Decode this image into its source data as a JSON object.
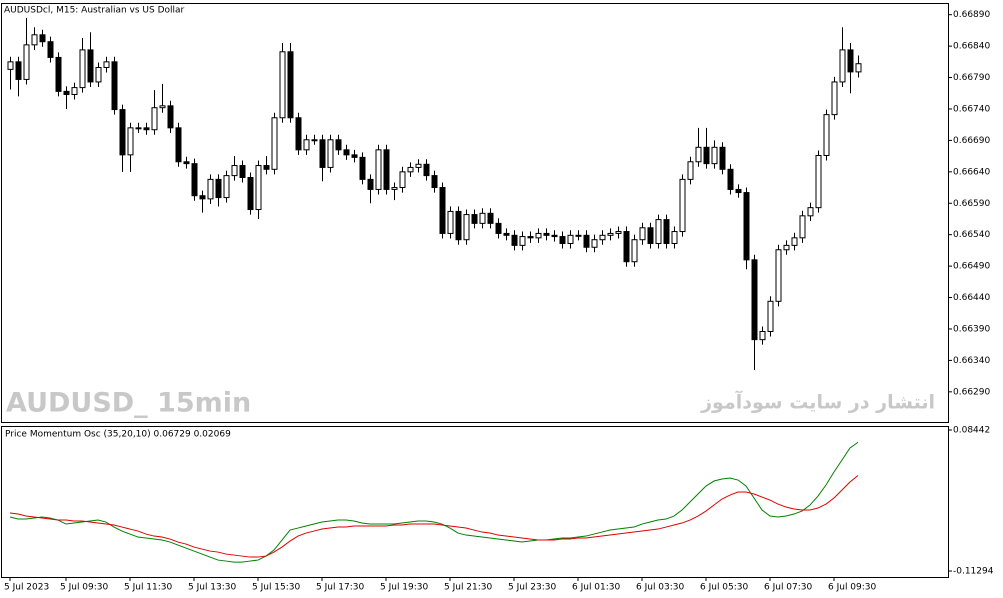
{
  "chart_data": [
    {
      "type": "candlestick",
      "title": "AUDUSDcl, M15:  Australian vs US Dollar",
      "watermark": "AUDUSD_ 15min",
      "annotation": "انتشار در سایت سودآموز",
      "categories": [
        "5 Jul 2023",
        null,
        null,
        null,
        null,
        null,
        null,
        "5 Jul 09:30",
        null,
        null,
        null,
        null,
        null,
        null,
        null,
        "5 Jul 11:30",
        null,
        null,
        null,
        null,
        null,
        null,
        null,
        "5 Jul 13:30",
        null,
        null,
        null,
        null,
        null,
        null,
        null,
        "5 Jul 15:30",
        null,
        null,
        null,
        null,
        null,
        null,
        null,
        "5 Jul 17:30",
        null,
        null,
        null,
        null,
        null,
        null,
        null,
        "5 Jul 19:30",
        null,
        null,
        null,
        null,
        null,
        null,
        null,
        "5 Jul 21:30",
        null,
        null,
        null,
        null,
        null,
        null,
        null,
        "5 Jul 23:30",
        null,
        null,
        null,
        null,
        null,
        null,
        null,
        "6 Jul 01:30",
        null,
        null,
        null,
        null,
        null,
        null,
        null,
        "6 Jul 03:30",
        null,
        null,
        null,
        null,
        null,
        null,
        null,
        "6 Jul 05:30",
        null,
        null,
        null,
        null,
        null,
        null,
        null,
        "6 Jul 07:30",
        null,
        null,
        null,
        null,
        null,
        null,
        null,
        "6 Jul 09:30",
        null,
        null,
        null
      ],
      "open": [
        0.66803,
        0.66815,
        0.66787,
        0.66842,
        0.66858,
        0.66847,
        0.66822,
        0.66768,
        0.66763,
        0.66774,
        0.66834,
        0.66783,
        0.66806,
        0.66815,
        0.66739,
        0.66667,
        0.6671,
        0.6671,
        0.66707,
        0.66742,
        0.66745,
        0.6671,
        0.66656,
        0.66653,
        0.66602,
        0.66597,
        0.66628,
        0.66599,
        0.66634,
        0.6665,
        0.66631,
        0.6658,
        0.6665,
        0.66644,
        0.66726,
        0.66831,
        0.66726,
        0.66675,
        0.66691,
        0.66691,
        0.66647,
        0.66691,
        0.66675,
        0.66667,
        0.66663,
        0.66628,
        0.66612,
        0.66675,
        0.66612,
        0.66615,
        0.6664,
        0.66647,
        0.66652,
        0.66634,
        0.66615,
        0.66542,
        0.66577,
        0.66532,
        0.66572,
        0.66558,
        0.66574,
        0.66558,
        0.66542,
        0.66539,
        0.66523,
        0.66537,
        0.66535,
        0.66542,
        0.66539,
        0.66537,
        0.66526,
        0.66539,
        0.66539,
        0.6652,
        0.66532,
        0.66539,
        0.66542,
        0.66545,
        0.66497,
        0.66532,
        0.66551,
        0.66526,
        0.66564,
        0.66526,
        0.66545,
        0.66628,
        0.66656,
        0.66679,
        0.66653,
        0.66679,
        0.66644,
        0.66612,
        0.66607,
        0.665,
        0.66373,
        0.66386,
        0.66434,
        0.66516,
        0.66523,
        0.66535,
        0.6657,
        0.66583,
        0.66666,
        0.66731,
        0.66783,
        0.66834,
        0.66799
      ],
      "high": [
        0.66823,
        0.66823,
        0.66885,
        0.6687,
        0.66866,
        0.66855,
        0.6683,
        0.66776,
        0.66782,
        0.66853,
        0.66862,
        0.66814,
        0.66823,
        0.66823,
        0.66747,
        0.66718,
        0.66718,
        0.66718,
        0.6677,
        0.6678,
        0.66753,
        0.66718,
        0.66664,
        0.66661,
        0.6661,
        0.66636,
        0.66636,
        0.66642,
        0.66665,
        0.66658,
        0.66639,
        0.66658,
        0.66665,
        0.66734,
        0.66845,
        0.66845,
        0.66734,
        0.66699,
        0.66699,
        0.66699,
        0.66699,
        0.66699,
        0.66683,
        0.66675,
        0.66671,
        0.66636,
        0.66683,
        0.66683,
        0.66623,
        0.66648,
        0.66655,
        0.6666,
        0.6666,
        0.66642,
        0.66623,
        0.66585,
        0.66585,
        0.6658,
        0.6658,
        0.66582,
        0.66582,
        0.66566,
        0.6655,
        0.66547,
        0.66545,
        0.66545,
        0.6655,
        0.6655,
        0.66547,
        0.66545,
        0.66547,
        0.66547,
        0.66547,
        0.6654,
        0.66547,
        0.6655,
        0.66553,
        0.66553,
        0.6654,
        0.66559,
        0.66559,
        0.66572,
        0.66572,
        0.66553,
        0.66636,
        0.66664,
        0.6671,
        0.6671,
        0.6669,
        0.66687,
        0.66652,
        0.6662,
        0.66615,
        0.66508,
        0.66394,
        0.66442,
        0.66524,
        0.66531,
        0.66543,
        0.66578,
        0.66591,
        0.66674,
        0.66739,
        0.66791,
        0.6687,
        0.66845,
        0.66825
      ],
      "low": [
        0.66771,
        0.6676,
        0.66779,
        0.66834,
        0.66839,
        0.66814,
        0.6676,
        0.6674,
        0.66755,
        0.66766,
        0.66775,
        0.66775,
        0.66798,
        0.66731,
        0.6664,
        0.6664,
        0.66702,
        0.66699,
        0.66699,
        0.66734,
        0.66702,
        0.66648,
        0.66645,
        0.66594,
        0.66575,
        0.66589,
        0.66585,
        0.66591,
        0.66626,
        0.66623,
        0.66572,
        0.66565,
        0.66636,
        0.66636,
        0.66718,
        0.66718,
        0.66667,
        0.66667,
        0.66683,
        0.66625,
        0.66639,
        0.66667,
        0.66659,
        0.66655,
        0.6662,
        0.6659,
        0.66604,
        0.66604,
        0.66595,
        0.66607,
        0.66632,
        0.66639,
        0.66626,
        0.66607,
        0.66534,
        0.66534,
        0.66524,
        0.66524,
        0.6655,
        0.6655,
        0.6655,
        0.66534,
        0.66531,
        0.66515,
        0.66515,
        0.66527,
        0.66527,
        0.66531,
        0.66529,
        0.66518,
        0.66518,
        0.66531,
        0.66512,
        0.66512,
        0.66524,
        0.66531,
        0.66534,
        0.66489,
        0.66489,
        0.66524,
        0.66518,
        0.66518,
        0.66518,
        0.66518,
        0.66537,
        0.6662,
        0.66648,
        0.66645,
        0.66645,
        0.66636,
        0.66604,
        0.66599,
        0.66485,
        0.66325,
        0.66365,
        0.66378,
        0.66426,
        0.66508,
        0.66515,
        0.66527,
        0.66562,
        0.66575,
        0.66658,
        0.66723,
        0.66775,
        0.66765,
        0.6679
      ],
      "close": [
        0.66815,
        0.66787,
        0.66842,
        0.66858,
        0.66847,
        0.66822,
        0.66768,
        0.66763,
        0.66774,
        0.66834,
        0.66783,
        0.66806,
        0.66815,
        0.66739,
        0.66667,
        0.6671,
        0.6671,
        0.66707,
        0.66742,
        0.66745,
        0.6671,
        0.66656,
        0.66653,
        0.66602,
        0.66597,
        0.66628,
        0.66599,
        0.66634,
        0.6665,
        0.66631,
        0.6658,
        0.6665,
        0.66644,
        0.66726,
        0.66831,
        0.66726,
        0.66675,
        0.66691,
        0.66691,
        0.66647,
        0.66691,
        0.66675,
        0.66667,
        0.66663,
        0.66628,
        0.66612,
        0.66675,
        0.66612,
        0.66615,
        0.6664,
        0.66647,
        0.66652,
        0.66634,
        0.66615,
        0.66542,
        0.66577,
        0.66532,
        0.66572,
        0.66558,
        0.66574,
        0.66558,
        0.66542,
        0.66539,
        0.66523,
        0.66537,
        0.66535,
        0.66542,
        0.66539,
        0.66537,
        0.66526,
        0.66539,
        0.66539,
        0.6652,
        0.66532,
        0.66539,
        0.66542,
        0.66545,
        0.66497,
        0.66532,
        0.66551,
        0.66526,
        0.66564,
        0.66526,
        0.66545,
        0.66628,
        0.66656,
        0.66679,
        0.66653,
        0.66679,
        0.66644,
        0.66612,
        0.66607,
        0.665,
        0.66373,
        0.66386,
        0.66434,
        0.66516,
        0.66523,
        0.66535,
        0.6657,
        0.66583,
        0.66666,
        0.66731,
        0.66783,
        0.66834,
        0.66799,
        0.66812
      ],
      "up_color": "#ffffff",
      "down_color": "#000000",
      "outline_color": "#000000",
      "ylim": [
        0.66242,
        0.66907
      ],
      "yticks": [
        {
          "value": 0.6689,
          "label": "0.66890"
        },
        {
          "value": 0.6684,
          "label": "0.66840"
        },
        {
          "value": 0.6679,
          "label": "0.66790"
        },
        {
          "value": 0.6674,
          "label": "0.66740"
        },
        {
          "value": 0.6669,
          "label": "0.66690"
        },
        {
          "value": 0.6664,
          "label": "0.66640"
        },
        {
          "value": 0.6659,
          "label": "0.66590"
        },
        {
          "value": 0.6654,
          "label": "0.66540"
        },
        {
          "value": 0.6649,
          "label": "0.66490"
        },
        {
          "value": 0.6644,
          "label": "0.66440"
        },
        {
          "value": 0.6639,
          "label": "0.66390"
        },
        {
          "value": 0.6634,
          "label": "0.66340"
        },
        {
          "value": 0.6629,
          "label": "0.66290"
        }
      ]
    },
    {
      "type": "line",
      "title": "Price Momentum Osc (35,20,10) 0.06729 0.02069",
      "series": [
        {
          "color": "#008000",
          "values": [
            -0.0374,
            -0.0402,
            -0.0402,
            -0.0388,
            -0.0374,
            -0.0388,
            -0.0416,
            -0.0472,
            -0.0458,
            -0.0444,
            -0.043,
            -0.0416,
            -0.0444,
            -0.0514,
            -0.057,
            -0.0612,
            -0.0654,
            -0.0668,
            -0.0682,
            -0.0696,
            -0.0724,
            -0.0766,
            -0.0808,
            -0.085,
            -0.0892,
            -0.0934,
            -0.0976,
            -0.099,
            -0.1004,
            -0.1004,
            -0.099,
            -0.0976,
            -0.092,
            -0.0836,
            -0.0696,
            -0.0556,
            -0.0528,
            -0.05,
            -0.0472,
            -0.0444,
            -0.043,
            -0.0416,
            -0.0416,
            -0.043,
            -0.0458,
            -0.0472,
            -0.0472,
            -0.0472,
            -0.0472,
            -0.0458,
            -0.0444,
            -0.043,
            -0.043,
            -0.0444,
            -0.0472,
            -0.0528,
            -0.0598,
            -0.0626,
            -0.064,
            -0.0654,
            -0.0668,
            -0.0682,
            -0.0696,
            -0.071,
            -0.0724,
            -0.071,
            -0.0696,
            -0.0696,
            -0.0682,
            -0.0668,
            -0.0668,
            -0.0654,
            -0.064,
            -0.0612,
            -0.0584,
            -0.0556,
            -0.0542,
            -0.0528,
            -0.0514,
            -0.0472,
            -0.0444,
            -0.0416,
            -0.0402,
            -0.036,
            -0.0276,
            -0.0164,
            -0.0052,
            0.006,
            0.013,
            0.0158,
            0.0172,
            0.0144,
            0.006,
            -0.0108,
            -0.0276,
            -0.036,
            -0.0374,
            -0.036,
            -0.0332,
            -0.029,
            -0.0206,
            -0.008,
            0.0074,
            0.0256,
            0.0424,
            0.0592,
            0.06729
          ]
        },
        {
          "color": "#e00000",
          "values": [
            -0.0318,
            -0.0332,
            -0.036,
            -0.0374,
            -0.0388,
            -0.0402,
            -0.0416,
            -0.0416,
            -0.043,
            -0.043,
            -0.0444,
            -0.0458,
            -0.0472,
            -0.0486,
            -0.0514,
            -0.0542,
            -0.057,
            -0.0612,
            -0.064,
            -0.0654,
            -0.0682,
            -0.0724,
            -0.0752,
            -0.0794,
            -0.0822,
            -0.085,
            -0.0864,
            -0.0892,
            -0.0906,
            -0.092,
            -0.0934,
            -0.0934,
            -0.092,
            -0.0864,
            -0.0794,
            -0.071,
            -0.064,
            -0.0598,
            -0.057,
            -0.0542,
            -0.0528,
            -0.0514,
            -0.0514,
            -0.05,
            -0.05,
            -0.05,
            -0.05,
            -0.05,
            -0.0486,
            -0.0486,
            -0.0472,
            -0.0472,
            -0.0472,
            -0.0472,
            -0.0486,
            -0.05,
            -0.0514,
            -0.0528,
            -0.0556,
            -0.0584,
            -0.0598,
            -0.0626,
            -0.064,
            -0.0654,
            -0.0668,
            -0.0682,
            -0.0696,
            -0.0696,
            -0.0696,
            -0.0682,
            -0.0682,
            -0.0668,
            -0.0668,
            -0.0654,
            -0.064,
            -0.0626,
            -0.0612,
            -0.0598,
            -0.0584,
            -0.057,
            -0.0556,
            -0.0542,
            -0.0514,
            -0.0486,
            -0.0458,
            -0.0416,
            -0.036,
            -0.029,
            -0.0206,
            -0.0122,
            -0.0066,
            -0.0024,
            -0.0024,
            -0.0052,
            -0.0094,
            -0.0136,
            -0.0192,
            -0.0234,
            -0.0262,
            -0.0276,
            -0.0276,
            -0.0248,
            -0.0192,
            -0.0108,
            0.0004,
            0.0116,
            0.02069
          ]
        }
      ],
      "ylim": [
        -0.1213,
        0.0886
      ],
      "yticks": [
        0.08442,
        -0.11294
      ]
    }
  ]
}
